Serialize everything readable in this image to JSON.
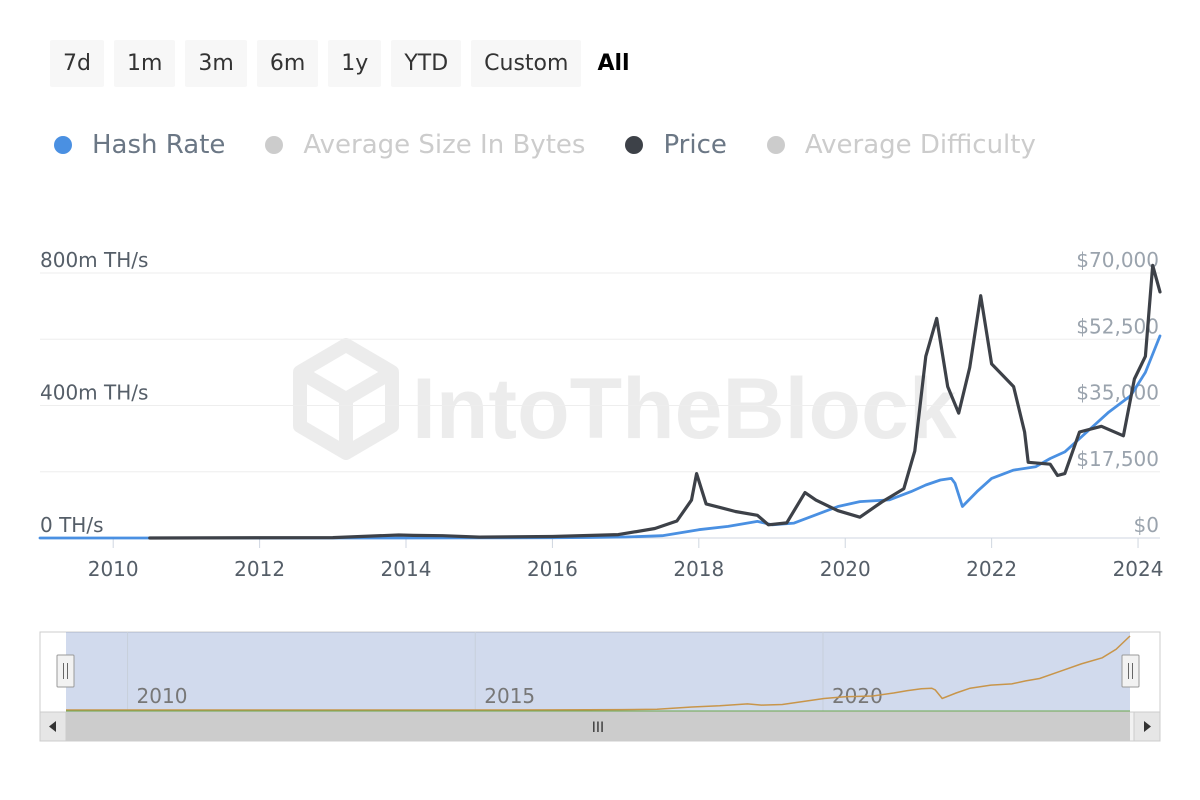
{
  "range_selector": {
    "buttons": [
      "7d",
      "1m",
      "3m",
      "6m",
      "1y",
      "YTD",
      "Custom",
      "All"
    ],
    "selected": "All"
  },
  "legend": [
    {
      "name": "Hash Rate",
      "color": "#4a90e2",
      "enabled": true
    },
    {
      "name": "Average Size In Bytes",
      "color": "#cccccc",
      "enabled": false
    },
    {
      "name": "Price",
      "color": "#3d4148",
      "enabled": true
    },
    {
      "name": "Average Difficulty",
      "color": "#cccccc",
      "enabled": false
    }
  ],
  "watermark": "IntoTheBlock",
  "chart_data": {
    "type": "line",
    "x_ticks": [
      "2010",
      "2012",
      "2014",
      "2016",
      "2018",
      "2020",
      "2022",
      "2024"
    ],
    "x_range": [
      2009.0,
      2024.3
    ],
    "y_left": {
      "ticks": [
        "0 TH/s",
        "400m TH/s",
        "800m TH/s"
      ],
      "range_mth": [
        0,
        800
      ]
    },
    "y_right": {
      "ticks": [
        "$0",
        "$17,500",
        "$35,000",
        "$52,500",
        "$70,000"
      ],
      "range_usd": [
        0,
        70000
      ]
    },
    "grid": true,
    "series": [
      {
        "name": "Hash Rate",
        "axis": "left",
        "unit": "m TH/s",
        "color": "#4a90e2",
        "points": [
          [
            2009.0,
            0
          ],
          [
            2012.0,
            0
          ],
          [
            2014.0,
            0.1
          ],
          [
            2015.0,
            0.4
          ],
          [
            2016.0,
            1
          ],
          [
            2016.5,
            1.5
          ],
          [
            2017.0,
            3
          ],
          [
            2017.5,
            7
          ],
          [
            2018.0,
            25
          ],
          [
            2018.4,
            35
          ],
          [
            2018.8,
            50
          ],
          [
            2019.0,
            40
          ],
          [
            2019.3,
            45
          ],
          [
            2019.6,
            70
          ],
          [
            2019.9,
            95
          ],
          [
            2020.2,
            110
          ],
          [
            2020.6,
            115
          ],
          [
            2020.9,
            140
          ],
          [
            2021.1,
            160
          ],
          [
            2021.3,
            175
          ],
          [
            2021.45,
            180
          ],
          [
            2021.5,
            165
          ],
          [
            2021.6,
            95
          ],
          [
            2021.8,
            140
          ],
          [
            2022.0,
            180
          ],
          [
            2022.3,
            205
          ],
          [
            2022.6,
            215
          ],
          [
            2022.8,
            240
          ],
          [
            2023.0,
            260
          ],
          [
            2023.3,
            320
          ],
          [
            2023.6,
            380
          ],
          [
            2023.9,
            430
          ],
          [
            2024.1,
            500
          ],
          [
            2024.3,
            610
          ]
        ]
      },
      {
        "name": "Price",
        "axis": "right",
        "unit": "USD",
        "color": "#3d4148",
        "points": [
          [
            2010.5,
            0
          ],
          [
            2013.0,
            100
          ],
          [
            2013.9,
            800
          ],
          [
            2014.1,
            700
          ],
          [
            2014.5,
            600
          ],
          [
            2015.0,
            250
          ],
          [
            2016.0,
            400
          ],
          [
            2016.9,
            900
          ],
          [
            2017.4,
            2500
          ],
          [
            2017.7,
            4500
          ],
          [
            2017.9,
            10000
          ],
          [
            2017.97,
            17000
          ],
          [
            2018.1,
            9000
          ],
          [
            2018.3,
            8000
          ],
          [
            2018.5,
            7000
          ],
          [
            2018.8,
            6000
          ],
          [
            2018.95,
            3500
          ],
          [
            2019.2,
            4000
          ],
          [
            2019.45,
            12000
          ],
          [
            2019.6,
            10000
          ],
          [
            2019.9,
            7200
          ],
          [
            2020.2,
            5500
          ],
          [
            2020.5,
            9500
          ],
          [
            2020.8,
            13000
          ],
          [
            2020.95,
            23000
          ],
          [
            2021.1,
            48000
          ],
          [
            2021.25,
            58000
          ],
          [
            2021.4,
            40000
          ],
          [
            2021.55,
            33000
          ],
          [
            2021.7,
            45000
          ],
          [
            2021.85,
            64000
          ],
          [
            2022.0,
            46000
          ],
          [
            2022.3,
            40000
          ],
          [
            2022.45,
            28000
          ],
          [
            2022.5,
            20000
          ],
          [
            2022.8,
            19500
          ],
          [
            2022.9,
            16500
          ],
          [
            2023.0,
            17000
          ],
          [
            2023.2,
            28000
          ],
          [
            2023.5,
            29500
          ],
          [
            2023.8,
            27000
          ],
          [
            2023.95,
            42000
          ],
          [
            2024.1,
            48000
          ],
          [
            2024.2,
            72000
          ],
          [
            2024.3,
            65000
          ]
        ]
      }
    ],
    "navigator": {
      "ticks": [
        "2010",
        "2015",
        "2020"
      ],
      "series_color": "#c8954a",
      "scrollbar_glyph": "III"
    }
  }
}
